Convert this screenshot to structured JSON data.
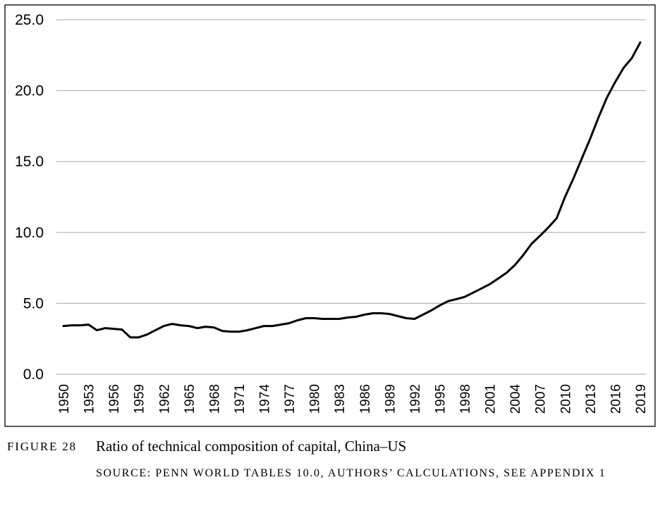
{
  "figure": {
    "label": "FIGURE 28",
    "title": "Ratio of technical composition of capital, China–US",
    "source": "SOURCE: PENN WORLD TABLES 10.0, AUTHORS’ CALCULATIONS, SEE APPENDIX 1"
  },
  "chart_data": {
    "type": "line",
    "title": "",
    "xlabel": "",
    "ylabel": "",
    "ylim": [
      0,
      25
    ],
    "y_ticks": [
      "0.0",
      "5.0",
      "10.0",
      "15.0",
      "20.0",
      "25.0"
    ],
    "x_tick_labels": [
      "1950",
      "1953",
      "1956",
      "1959",
      "1962",
      "1965",
      "1968",
      "1971",
      "1974",
      "1977",
      "1980",
      "1983",
      "1986",
      "1989",
      "1992",
      "1995",
      "1998",
      "2001",
      "2004",
      "2007",
      "2010",
      "2013",
      "2016",
      "2019"
    ],
    "grid": true,
    "x": [
      1950,
      1951,
      1952,
      1953,
      1954,
      1955,
      1956,
      1957,
      1958,
      1959,
      1960,
      1961,
      1962,
      1963,
      1964,
      1965,
      1966,
      1967,
      1968,
      1969,
      1970,
      1971,
      1972,
      1973,
      1974,
      1975,
      1976,
      1977,
      1978,
      1979,
      1980,
      1981,
      1982,
      1983,
      1984,
      1985,
      1986,
      1987,
      1988,
      1989,
      1990,
      1991,
      1992,
      1993,
      1994,
      1995,
      1996,
      1997,
      1998,
      1999,
      2000,
      2001,
      2002,
      2003,
      2004,
      2005,
      2006,
      2007,
      2008,
      2009,
      2010,
      2011,
      2012,
      2013,
      2014,
      2015,
      2016,
      2017,
      2018,
      2019
    ],
    "series": [
      {
        "color": "#000000",
        "values": [
          3.4,
          3.45,
          3.45,
          3.5,
          3.1,
          3.25,
          3.2,
          3.15,
          2.6,
          2.6,
          2.8,
          3.1,
          3.4,
          3.55,
          3.45,
          3.4,
          3.25,
          3.35,
          3.3,
          3.05,
          3.0,
          3.0,
          3.1,
          3.25,
          3.4,
          3.4,
          3.5,
          3.6,
          3.8,
          3.95,
          3.95,
          3.9,
          3.9,
          3.9,
          4.0,
          4.05,
          4.2,
          4.3,
          4.3,
          4.25,
          4.1,
          3.95,
          3.9,
          4.2,
          4.5,
          4.85,
          5.15,
          5.3,
          5.45,
          5.75,
          6.05,
          6.35,
          6.75,
          7.15,
          7.7,
          8.4,
          9.2,
          9.75,
          10.35,
          11.0,
          12.5,
          13.8,
          15.2,
          16.6,
          18.1,
          19.5,
          20.6,
          21.6,
          22.3,
          23.4
        ]
      }
    ]
  }
}
